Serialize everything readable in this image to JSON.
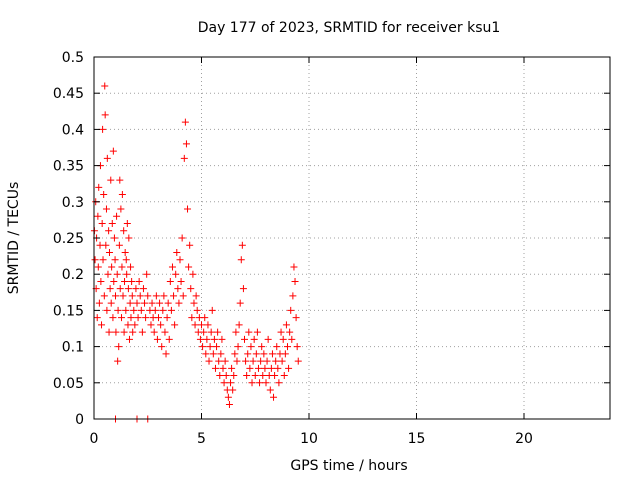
{
  "chart_data": {
    "type": "scatter",
    "title": "Day 177 of 2023, SRMTID for receiver ksu1",
    "xlabel": "GPS time / hours",
    "ylabel": "SRMTID / TECUs",
    "xlim": [
      0,
      24
    ],
    "ylim": [
      0,
      0.5
    ],
    "xticks": [
      0,
      5,
      10,
      15,
      20
    ],
    "xtick_labels": [
      "0",
      "5",
      "10",
      "15",
      "20"
    ],
    "yticks": [
      0,
      0.05,
      0.1,
      0.15,
      0.2,
      0.25,
      0.3,
      0.35,
      0.4,
      0.45,
      0.5
    ],
    "ytick_labels": [
      "0",
      "0.05",
      "0.1",
      "0.15",
      "0.2",
      "0.25",
      "0.3",
      "0.35",
      "0.4",
      "0.45",
      "0.5"
    ],
    "grid": true,
    "marker": "+",
    "color": "#ff0000",
    "series": [
      {
        "name": "SRMTID",
        "points": [
          [
            0.02,
            0.26
          ],
          [
            0.05,
            0.22
          ],
          [
            0.08,
            0.3
          ],
          [
            0.1,
            0.18
          ],
          [
            0.12,
            0.25
          ],
          [
            0.15,
            0.14
          ],
          [
            0.18,
            0.28
          ],
          [
            0.2,
            0.21
          ],
          [
            0.22,
            0.32
          ],
          [
            0.25,
            0.16
          ],
          [
            0.28,
            0.24
          ],
          [
            0.3,
            0.35
          ],
          [
            0.32,
            0.19
          ],
          [
            0.35,
            0.13
          ],
          [
            0.38,
            0.27
          ],
          [
            0.4,
            0.4
          ],
          [
            0.42,
            0.22
          ],
          [
            0.45,
            0.31
          ],
          [
            0.48,
            0.17
          ],
          [
            0.5,
            0.46
          ],
          [
            0.52,
            0.42
          ],
          [
            0.55,
            0.24
          ],
          [
            0.58,
            0.29
          ],
          [
            0.6,
            0.15
          ],
          [
            0.62,
            0.36
          ],
          [
            0.65,
            0.2
          ],
          [
            0.68,
            0.26
          ],
          [
            0.7,
            0.12
          ],
          [
            0.72,
            0.23
          ],
          [
            0.75,
            0.18
          ],
          [
            0.78,
            0.33
          ],
          [
            0.8,
            0.16
          ],
          [
            0.82,
            0.21
          ],
          [
            0.85,
            0.27
          ],
          [
            0.88,
            0.14
          ],
          [
            0.9,
            0.37
          ],
          [
            0.92,
            0.19
          ],
          [
            0.95,
            0.25
          ],
          [
            0.98,
            0.22
          ],
          [
            1.0,
            0.17
          ],
          [
            1.02,
            0.12
          ],
          [
            1.05,
            0.28
          ],
          [
            1.08,
            0.2
          ],
          [
            1.1,
            0.08
          ],
          [
            1.12,
            0.15
          ],
          [
            1.15,
            0.1
          ],
          [
            1.18,
            0.24
          ],
          [
            1.2,
            0.33
          ],
          [
            1.22,
            0.18
          ],
          [
            1.25,
            0.29
          ],
          [
            1.28,
            0.14
          ],
          [
            1.3,
            0.21
          ],
          [
            1.32,
            0.31
          ],
          [
            1.35,
            0.17
          ],
          [
            1.38,
            0.26
          ],
          [
            1.4,
            0.12
          ],
          [
            1.42,
            0.19
          ],
          [
            1.45,
            0.23
          ],
          [
            1.48,
            0.15
          ],
          [
            1.5,
            0.22
          ],
          [
            1.52,
            0.2
          ],
          [
            1.55,
            0.27
          ],
          [
            1.58,
            0.13
          ],
          [
            1.6,
            0.18
          ],
          [
            1.62,
            0.25
          ],
          [
            1.65,
            0.11
          ],
          [
            1.68,
            0.16
          ],
          [
            1.7,
            0.21
          ],
          [
            1.72,
            0.14
          ],
          [
            1.75,
            0.19
          ],
          [
            1.78,
            0.17
          ],
          [
            1.8,
            0.12
          ],
          [
            1.85,
            0.15
          ],
          [
            1.9,
            0.13
          ],
          [
            1.95,
            0.18
          ],
          [
            2.0,
            0.16
          ],
          [
            2.05,
            0.14
          ],
          [
            2.1,
            0.19
          ],
          [
            2.15,
            0.17
          ],
          [
            2.2,
            0.15
          ],
          [
            2.25,
            0.12
          ],
          [
            2.3,
            0.18
          ],
          [
            2.35,
            0.16
          ],
          [
            2.4,
            0.14
          ],
          [
            2.45,
            0.2
          ],
          [
            2.5,
            0.17
          ],
          [
            2.6,
            0.15
          ],
          [
            2.65,
            0.13
          ],
          [
            2.7,
            0.16
          ],
          [
            2.75,
            0.14
          ],
          [
            2.8,
            0.12
          ],
          [
            2.85,
            0.15
          ],
          [
            2.9,
            0.17
          ],
          [
            2.95,
            0.11
          ],
          [
            3.0,
            0.14
          ],
          [
            3.05,
            0.16
          ],
          [
            3.1,
            0.13
          ],
          [
            3.15,
            0.1
          ],
          [
            3.2,
            0.15
          ],
          [
            3.25,
            0.17
          ],
          [
            3.3,
            0.12
          ],
          [
            3.35,
            0.09
          ],
          [
            3.4,
            0.14
          ],
          [
            3.45,
            0.16
          ],
          [
            3.5,
            0.11
          ],
          [
            3.55,
            0.19
          ],
          [
            3.6,
            0.15
          ],
          [
            3.65,
            0.21
          ],
          [
            3.7,
            0.17
          ],
          [
            3.75,
            0.13
          ],
          [
            3.8,
            0.2
          ],
          [
            3.85,
            0.23
          ],
          [
            3.9,
            0.18
          ],
          [
            3.95,
            0.16
          ],
          [
            4.0,
            0.22
          ],
          [
            4.05,
            0.19
          ],
          [
            4.1,
            0.25
          ],
          [
            4.15,
            0.17
          ],
          [
            4.2,
            0.36
          ],
          [
            4.25,
            0.41
          ],
          [
            4.3,
            0.38
          ],
          [
            4.35,
            0.29
          ],
          [
            4.4,
            0.21
          ],
          [
            4.45,
            0.24
          ],
          [
            4.5,
            0.18
          ],
          [
            4.55,
            0.14
          ],
          [
            4.6,
            0.2
          ],
          [
            4.65,
            0.16
          ],
          [
            4.7,
            0.13
          ],
          [
            4.75,
            0.17
          ],
          [
            4.8,
            0.15
          ],
          [
            4.85,
            0.12
          ],
          [
            4.9,
            0.14
          ],
          [
            4.95,
            0.11
          ],
          [
            5.0,
            0.13
          ],
          [
            5.05,
            0.1
          ],
          [
            5.1,
            0.12
          ],
          [
            5.15,
            0.14
          ],
          [
            5.2,
            0.09
          ],
          [
            5.25,
            0.11
          ],
          [
            5.3,
            0.13
          ],
          [
            5.35,
            0.08
          ],
          [
            5.4,
            0.1
          ],
          [
            5.45,
            0.12
          ],
          [
            5.5,
            0.15
          ],
          [
            5.55,
            0.09
          ],
          [
            5.6,
            0.11
          ],
          [
            5.65,
            0.07
          ],
          [
            5.7,
            0.1
          ],
          [
            5.75,
            0.12
          ],
          [
            5.8,
            0.08
          ],
          [
            5.85,
            0.06
          ],
          [
            5.9,
            0.09
          ],
          [
            5.95,
            0.11
          ],
          [
            6.0,
            0.07
          ],
          [
            6.05,
            0.05
          ],
          [
            6.1,
            0.08
          ],
          [
            6.15,
            0.06
          ],
          [
            6.2,
            0.04
          ],
          [
            6.25,
            0.03
          ],
          [
            6.3,
            0.02
          ],
          [
            6.35,
            0.05
          ],
          [
            6.4,
            0.07
          ],
          [
            6.45,
            0.04
          ],
          [
            6.5,
            0.06
          ],
          [
            6.55,
            0.09
          ],
          [
            6.6,
            0.12
          ],
          [
            6.65,
            0.08
          ],
          [
            6.7,
            0.1
          ],
          [
            6.75,
            0.13
          ],
          [
            6.8,
            0.16
          ],
          [
            6.85,
            0.22
          ],
          [
            6.9,
            0.24
          ],
          [
            6.95,
            0.18
          ],
          [
            7.0,
            0.11
          ],
          [
            7.05,
            0.08
          ],
          [
            7.1,
            0.06
          ],
          [
            7.15,
            0.09
          ],
          [
            7.2,
            0.12
          ],
          [
            7.25,
            0.07
          ],
          [
            7.3,
            0.1
          ],
          [
            7.35,
            0.05
          ],
          [
            7.4,
            0.08
          ],
          [
            7.45,
            0.11
          ],
          [
            7.5,
            0.06
          ],
          [
            7.55,
            0.09
          ],
          [
            7.6,
            0.12
          ],
          [
            7.65,
            0.07
          ],
          [
            7.7,
            0.05
          ],
          [
            7.75,
            0.08
          ],
          [
            7.8,
            0.1
          ],
          [
            7.85,
            0.06
          ],
          [
            7.9,
            0.09
          ],
          [
            7.95,
            0.07
          ],
          [
            8.0,
            0.05
          ],
          [
            8.05,
            0.08
          ],
          [
            8.1,
            0.11
          ],
          [
            8.15,
            0.06
          ],
          [
            8.2,
            0.04
          ],
          [
            8.25,
            0.07
          ],
          [
            8.3,
            0.09
          ],
          [
            8.35,
            0.03
          ],
          [
            8.4,
            0.06
          ],
          [
            8.45,
            0.08
          ],
          [
            8.5,
            0.1
          ],
          [
            8.55,
            0.07
          ],
          [
            8.6,
            0.05
          ],
          [
            8.65,
            0.09
          ],
          [
            8.7,
            0.12
          ],
          [
            8.75,
            0.08
          ],
          [
            8.8,
            0.11
          ],
          [
            8.85,
            0.06
          ],
          [
            8.9,
            0.09
          ],
          [
            8.95,
            0.13
          ],
          [
            9.0,
            0.1
          ],
          [
            9.05,
            0.07
          ],
          [
            9.1,
            0.12
          ],
          [
            9.15,
            0.15
          ],
          [
            9.2,
            0.11
          ],
          [
            9.25,
            0.17
          ],
          [
            9.3,
            0.21
          ],
          [
            9.35,
            0.19
          ],
          [
            9.4,
            0.14
          ],
          [
            9.45,
            0.1
          ],
          [
            9.5,
            0.08
          ],
          [
            1.0,
            0.0
          ],
          [
            2.0,
            0.0
          ],
          [
            2.5,
            0.0
          ]
        ]
      }
    ]
  }
}
